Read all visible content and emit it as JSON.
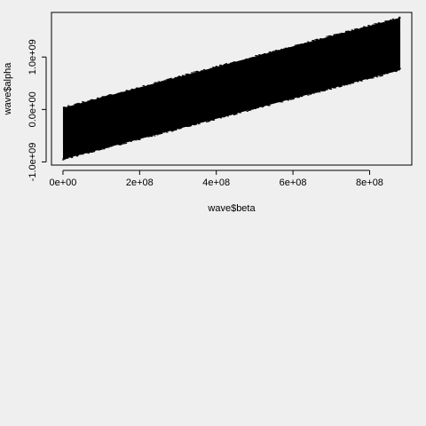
{
  "chart_data": {
    "type": "scatter",
    "title": "",
    "xlabel": "wave$beta",
    "ylabel": "wave$alpha",
    "xlim": [
      -30000000,
      910000000
    ],
    "ylim": [
      -1060000000,
      1850000000
    ],
    "x_ticks": [
      {
        "value": 0,
        "label": "0e+00"
      },
      {
        "value": 200000000,
        "label": "2e+08"
      },
      {
        "value": 400000000,
        "label": "4e+08"
      },
      {
        "value": 600000000,
        "label": "6e+08"
      },
      {
        "value": 800000000,
        "label": "8e+08"
      }
    ],
    "y_ticks": [
      {
        "value": -1000000000,
        "label": "-1.0e+09"
      },
      {
        "value": 0,
        "label": "0.0e+00"
      },
      {
        "value": 1000000000,
        "label": "1.0e+09"
      }
    ],
    "series": [
      {
        "color": "#000000",
        "x_range": [
          0,
          880000000
        ],
        "lower_edge_start": [
          0,
          -950000000
        ],
        "lower_edge_end": [
          880000000,
          750000000
        ],
        "upper_edge_start": [
          0,
          30000000
        ],
        "upper_edge_end": [
          880000000,
          1750000000
        ]
      }
    ],
    "grid": false,
    "legend": "none"
  }
}
